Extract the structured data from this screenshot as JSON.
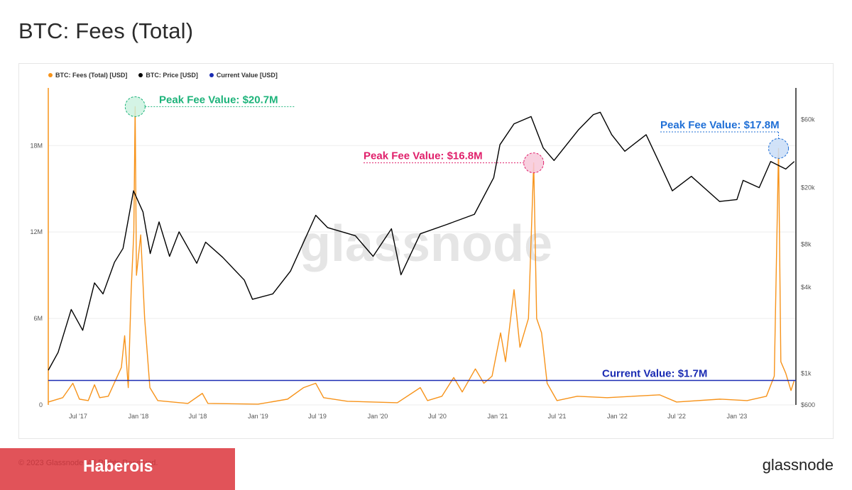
{
  "page": {
    "title": "BTC: Fees (Total)",
    "copyright": "© 2023 Glassnode. All Rights Reserved.",
    "banner_text": "Haberois",
    "brand": "glassnode",
    "watermark": "glassnode"
  },
  "colors": {
    "fees": "#f7931a",
    "price": "#000000",
    "current": "#1a2bb3",
    "peak1": "#1db37a",
    "peak2": "#e0206b",
    "peak3": "#1f6fd6"
  },
  "chart_data": {
    "type": "line",
    "legend": [
      {
        "label": "BTC: Fees (Total) [USD]",
        "color": "#f7931a"
      },
      {
        "label": "BTC: Price [USD]",
        "color": "#000000"
      },
      {
        "label": "Current Value [USD]",
        "color": "#1a2bb3"
      }
    ],
    "legend_position": "top-left",
    "x_ticks": [
      "Jul '17",
      "Jan '18",
      "Jul '18",
      "Jan '19",
      "Jul '19",
      "Jan '20",
      "Jul '20",
      "Jan '21",
      "Jul '21",
      "Jan '22",
      "Jul '22",
      "Jan '23"
    ],
    "y_left_ticks": [
      {
        "label": "0",
        "value": 0
      },
      {
        "label": "6M",
        "value": 6000000
      },
      {
        "label": "12M",
        "value": 12000000
      },
      {
        "label": "18M",
        "value": 18000000
      }
    ],
    "y_left_range": [
      0,
      22000000
    ],
    "y_right_scale": "log",
    "y_right_ticks": [
      {
        "label": "$600",
        "value": 600
      },
      {
        "label": "$1k",
        "value": 1000
      },
      {
        "label": "$4k",
        "value": 4000
      },
      {
        "label": "$8k",
        "value": 8000
      },
      {
        "label": "$20k",
        "value": 20000
      },
      {
        "label": "$60k",
        "value": 60000
      }
    ],
    "y_right_range": [
      600,
      100000
    ],
    "grid": true,
    "series": [
      {
        "name": "BTC: Fees (Total) [USD]",
        "axis": "left",
        "points": [
          [
            "2017-04-01",
            200000
          ],
          [
            "2017-05-15",
            500000
          ],
          [
            "2017-06-15",
            1500000
          ],
          [
            "2017-07-05",
            400000
          ],
          [
            "2017-08-01",
            300000
          ],
          [
            "2017-08-20",
            1400000
          ],
          [
            "2017-09-05",
            500000
          ],
          [
            "2017-10-01",
            600000
          ],
          [
            "2017-11-10",
            2600000
          ],
          [
            "2017-11-20",
            4800000
          ],
          [
            "2017-12-01",
            1200000
          ],
          [
            "2017-12-10",
            8000000
          ],
          [
            "2017-12-18",
            12000000
          ],
          [
            "2017-12-22",
            20700000
          ],
          [
            "2017-12-26",
            9000000
          ],
          [
            "2018-01-08",
            11800000
          ],
          [
            "2018-01-20",
            6000000
          ],
          [
            "2018-02-05",
            1200000
          ],
          [
            "2018-03-01",
            300000
          ],
          [
            "2018-06-01",
            100000
          ],
          [
            "2018-07-15",
            800000
          ],
          [
            "2018-08-01",
            100000
          ],
          [
            "2019-01-01",
            50000
          ],
          [
            "2019-04-01",
            400000
          ],
          [
            "2019-05-20",
            1200000
          ],
          [
            "2019-06-26",
            1500000
          ],
          [
            "2019-07-20",
            500000
          ],
          [
            "2019-10-01",
            250000
          ],
          [
            "2020-03-01",
            150000
          ],
          [
            "2020-05-10",
            1200000
          ],
          [
            "2020-06-01",
            300000
          ],
          [
            "2020-07-15",
            600000
          ],
          [
            "2020-08-20",
            1900000
          ],
          [
            "2020-09-15",
            900000
          ],
          [
            "2020-10-25",
            2500000
          ],
          [
            "2020-11-20",
            1500000
          ],
          [
            "2020-12-15",
            2000000
          ],
          [
            "2021-01-10",
            5000000
          ],
          [
            "2021-01-25",
            3000000
          ],
          [
            "2021-02-20",
            8000000
          ],
          [
            "2021-03-10",
            4000000
          ],
          [
            "2021-04-05",
            6000000
          ],
          [
            "2021-04-21",
            16800000
          ],
          [
            "2021-04-30",
            6000000
          ],
          [
            "2021-05-15",
            5000000
          ],
          [
            "2021-06-01",
            1500000
          ],
          [
            "2021-07-01",
            300000
          ],
          [
            "2021-09-01",
            600000
          ],
          [
            "2021-12-01",
            500000
          ],
          [
            "2022-05-10",
            700000
          ],
          [
            "2022-07-01",
            200000
          ],
          [
            "2022-11-10",
            400000
          ],
          [
            "2023-02-01",
            300000
          ],
          [
            "2023-04-01",
            600000
          ],
          [
            "2023-04-25",
            2000000
          ],
          [
            "2023-05-08",
            17800000
          ],
          [
            "2023-05-15",
            3000000
          ],
          [
            "2023-05-30",
            2200000
          ],
          [
            "2023-06-15",
            1000000
          ],
          [
            "2023-06-25",
            1700000
          ]
        ]
      },
      {
        "name": "BTC: Price [USD]",
        "axis": "right",
        "points": [
          [
            "2017-04-01",
            1050
          ],
          [
            "2017-05-01",
            1400
          ],
          [
            "2017-06-10",
            2800
          ],
          [
            "2017-07-15",
            2000
          ],
          [
            "2017-08-20",
            4300
          ],
          [
            "2017-09-15",
            3600
          ],
          [
            "2017-10-20",
            6000
          ],
          [
            "2017-11-15",
            7500
          ],
          [
            "2017-12-17",
            19000
          ],
          [
            "2018-01-15",
            13500
          ],
          [
            "2018-02-06",
            6900
          ],
          [
            "2018-03-05",
            11500
          ],
          [
            "2018-04-06",
            6600
          ],
          [
            "2018-05-05",
            9800
          ],
          [
            "2018-06-28",
            5900
          ],
          [
            "2018-07-25",
            8300
          ],
          [
            "2018-09-15",
            6500
          ],
          [
            "2018-11-20",
            4500
          ],
          [
            "2018-12-15",
            3300
          ],
          [
            "2019-02-15",
            3600
          ],
          [
            "2019-04-10",
            5200
          ],
          [
            "2019-06-26",
            12800
          ],
          [
            "2019-08-01",
            10500
          ],
          [
            "2019-10-25",
            9200
          ],
          [
            "2019-12-18",
            6600
          ],
          [
            "2020-02-12",
            10300
          ],
          [
            "2020-03-12",
            4900
          ],
          [
            "2020-05-10",
            9500
          ],
          [
            "2020-07-28",
            11000
          ],
          [
            "2020-10-22",
            13000
          ],
          [
            "2020-12-20",
            23500
          ],
          [
            "2021-01-08",
            40000
          ],
          [
            "2021-02-20",
            56000
          ],
          [
            "2021-04-13",
            63000
          ],
          [
            "2021-05-20",
            38000
          ],
          [
            "2021-06-22",
            31000
          ],
          [
            "2021-09-05",
            51000
          ],
          [
            "2021-10-20",
            65000
          ],
          [
            "2021-11-10",
            67500
          ],
          [
            "2021-12-15",
            47000
          ],
          [
            "2022-01-24",
            36000
          ],
          [
            "2022-03-30",
            47000
          ],
          [
            "2022-05-12",
            29000
          ],
          [
            "2022-06-18",
            19000
          ],
          [
            "2022-08-15",
            24000
          ],
          [
            "2022-11-09",
            16000
          ],
          [
            "2023-01-01",
            16500
          ],
          [
            "2023-01-20",
            22500
          ],
          [
            "2023-03-10",
            20000
          ],
          [
            "2023-04-14",
            30500
          ],
          [
            "2023-05-30",
            27000
          ],
          [
            "2023-06-25",
            30500
          ]
        ]
      },
      {
        "name": "Current Value [USD]",
        "axis": "left",
        "points": [
          [
            "2017-04-01",
            1700000
          ],
          [
            "2023-06-30",
            1700000
          ]
        ]
      }
    ],
    "x_range": [
      "2017-04-01",
      "2023-06-30"
    ],
    "annotations": [
      {
        "label": "Peak Fee Value: $20.7M",
        "date": "2017-12-22",
        "value": 20700000,
        "color": "#1db37a"
      },
      {
        "label": "Peak Fee Value: $16.8M",
        "date": "2021-04-21",
        "value": 16800000,
        "color": "#e0206b"
      },
      {
        "label": "Peak Fee Value: $17.8M",
        "date": "2023-05-08",
        "value": 17800000,
        "color": "#1f6fd6"
      },
      {
        "label": "Current Value: $1.7M",
        "date": "2023-06-25",
        "value": 1700000,
        "color": "#1a2bb3"
      }
    ]
  }
}
